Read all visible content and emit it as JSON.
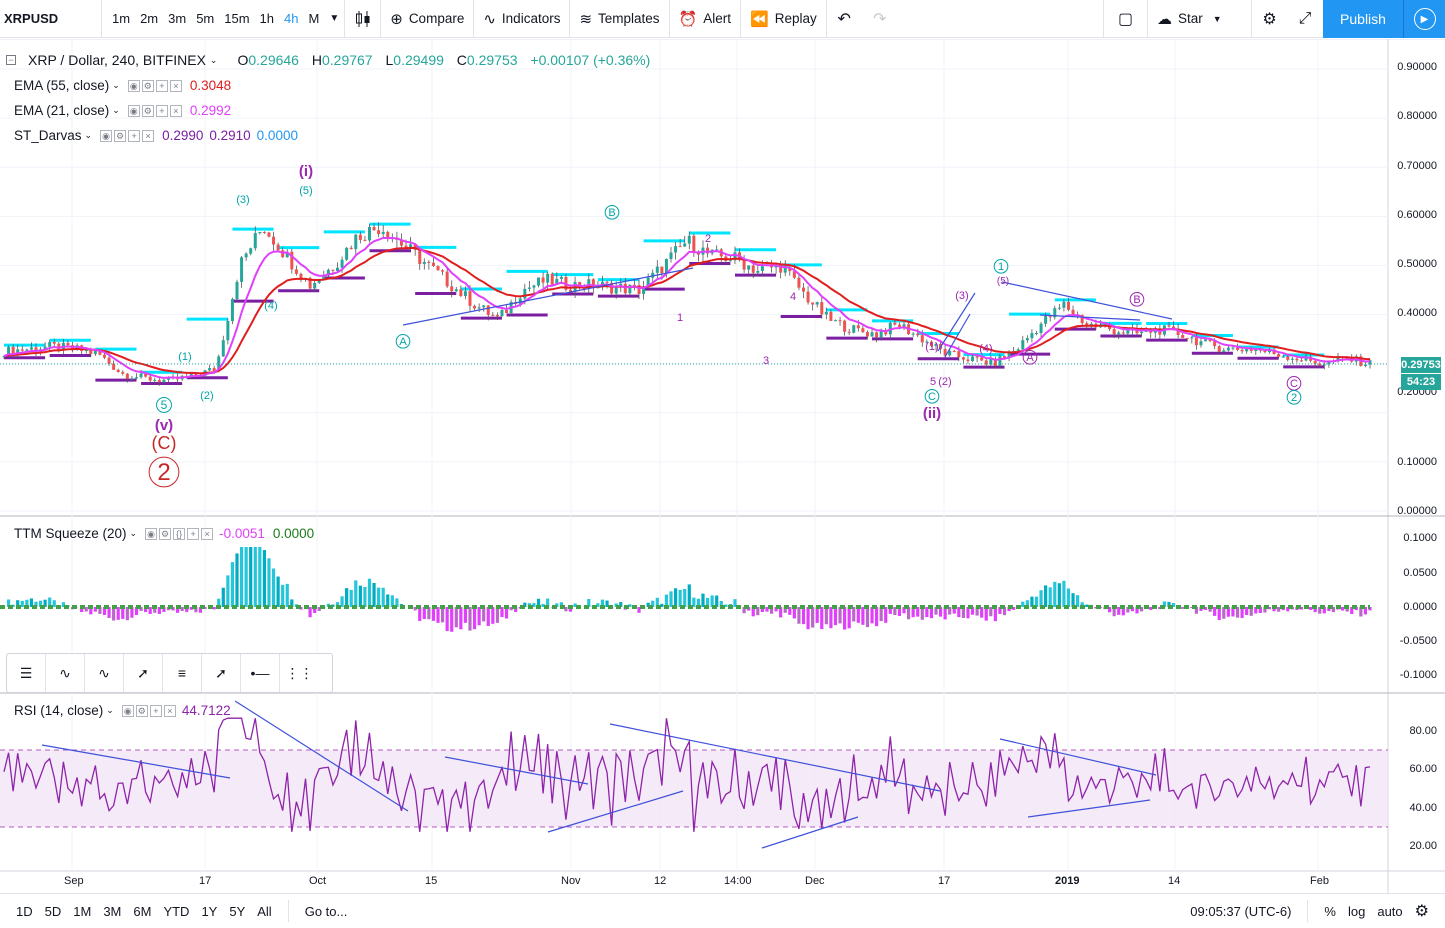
{
  "toolbar": {
    "symbol": "XRPUSD",
    "timeframes": [
      "1m",
      "2m",
      "3m",
      "5m",
      "15m",
      "1h",
      "4h",
      "M"
    ],
    "active_timeframe": "4h",
    "compare": "Compare",
    "indicators": "Indicators",
    "templates": "Templates",
    "alert": "Alert",
    "replay": "Replay",
    "star": "Star",
    "publish": "Publish"
  },
  "legend": {
    "title": "XRP / Dollar, 240, BITFINEX",
    "ohlc": {
      "o": "0.29646",
      "h": "0.29767",
      "l": "0.29499",
      "c": "0.29753",
      "change": "+0.00107 (+0.36%)"
    },
    "ema55_label": "EMA (55, close)",
    "ema55_value": "0.3048",
    "ema21_label": "EMA (21, close)",
    "ema21_value": "0.2992",
    "darvas_label": "ST_Darvas",
    "darvas_v1": "0.2990",
    "darvas_v2": "0.2910",
    "darvas_v3": "0.0000",
    "ttm_label": "TTM Squeeze (20)",
    "ttm_v1": "-0.0051",
    "ttm_v2": "0.0000",
    "rsi_label": "RSI (14, close)",
    "rsi_value": "44.7122"
  },
  "price_axis": [
    "0.90000",
    "0.80000",
    "0.70000",
    "0.60000",
    "0.50000",
    "0.40000",
    "0.30000",
    "0.20000",
    "0.10000",
    "0.00000"
  ],
  "ttm_axis": [
    "0.1000",
    "0.0500",
    "0.0000",
    "-0.0500",
    "-0.1000"
  ],
  "rsi_axis": [
    "80.00",
    "60.00",
    "40.00",
    "20.00"
  ],
  "current_price": "0.29753",
  "countdown": "54:23",
  "time_axis": [
    "Sep",
    "17",
    "Oct",
    "15",
    "Nov",
    "12",
    "14:00",
    "Dec",
    "17",
    "2019",
    "14",
    "Feb"
  ],
  "wave_labels": {
    "v": "(v)",
    "C_red": "(C)",
    "two": "2",
    "i": "(i)",
    "ii": "(ii)",
    "A1": "A",
    "B1": "B",
    "C1": "C",
    "A2": "A",
    "B2": "B",
    "C2": "C",
    "one": "1",
    "two_teal": "2",
    "p1": "(1)",
    "p2": "(2)",
    "p3": "(3)",
    "p4": "(4)",
    "p5": "(5)",
    "five": "5",
    "n1": "1",
    "n2": "2",
    "n3": "3",
    "n4": "4"
  },
  "bottom": {
    "ranges": [
      "1D",
      "5D",
      "1M",
      "3M",
      "6M",
      "YTD",
      "1Y",
      "5Y",
      "All"
    ],
    "goto": "Go to...",
    "clock": "09:05:37 (UTC-6)",
    "pct": "%",
    "log": "log",
    "auto": "auto"
  },
  "colors": {
    "ema55": "#e01e1e",
    "ema21": "#e040fb",
    "darvas_top": "#00e5ff",
    "darvas_bottom": "#7b1fa2",
    "accent": "#2196f3",
    "up": "#26a69a",
    "down": "#ef5350"
  },
  "chart_data": {
    "type": "candlestick",
    "title": "XRP / Dollar, 240, BITFINEX",
    "ylim": [
      0,
      0.95
    ],
    "close_series": [
      0.325,
      0.33,
      0.335,
      0.33,
      0.32,
      0.28,
      0.27,
      0.265,
      0.275,
      0.29,
      0.5,
      0.58,
      0.52,
      0.46,
      0.5,
      0.56,
      0.58,
      0.54,
      0.5,
      0.46,
      0.42,
      0.39,
      0.45,
      0.47,
      0.46,
      0.46,
      0.455,
      0.45,
      0.5,
      0.55,
      0.52,
      0.515,
      0.49,
      0.5,
      0.44,
      0.39,
      0.37,
      0.36,
      0.38,
      0.35,
      0.32,
      0.31,
      0.3,
      0.33,
      0.38,
      0.42,
      0.38,
      0.37,
      0.36,
      0.37,
      0.36,
      0.34,
      0.33,
      0.33,
      0.32,
      0.31,
      0.3,
      0.31,
      0.3
    ],
    "ema55_end": 0.3048,
    "ema21_end": 0.2992,
    "rsi_ylim": [
      15,
      95
    ],
    "rsi_band": [
      30,
      70
    ],
    "rsi_last": 44.7122
  }
}
